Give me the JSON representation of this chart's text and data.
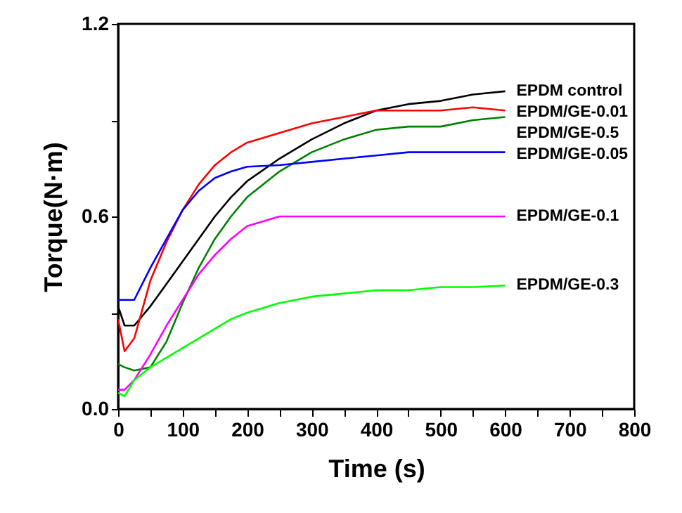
{
  "chart_data": {
    "type": "line",
    "xlabel": "Time (s)",
    "ylabel": "Torque(N·m)",
    "xlim": [
      0,
      800
    ],
    "ylim": [
      0,
      1.2
    ],
    "xticks": [
      0,
      {
        "value": 50,
        "label": null
      },
      100,
      {
        "value": 150,
        "label": null
      },
      200,
      {
        "value": 250,
        "label": null
      },
      300,
      {
        "value": 350,
        "label": null
      },
      400,
      {
        "value": 450,
        "label": null
      },
      500,
      {
        "value": 550,
        "label": null
      },
      600,
      {
        "value": 650,
        "label": null
      },
      700,
      {
        "value": 750,
        "label": null
      },
      800
    ],
    "yticks": [
      {
        "value": 0,
        "label": "0.0"
      },
      {
        "value": 0.3,
        "label": null
      },
      {
        "value": 0.6,
        "label": "0.6"
      },
      {
        "value": 0.9,
        "label": null
      },
      {
        "value": 1.2,
        "label": "1.2"
      }
    ],
    "x": [
      0,
      10,
      25,
      50,
      75,
      100,
      125,
      150,
      175,
      200,
      250,
      300,
      350,
      400,
      450,
      500,
      550,
      600
    ],
    "legend": false,
    "grid": false,
    "marker": "none",
    "line_style": "solid",
    "series": [
      {
        "name": "EPDM control",
        "color": "#000000",
        "values": [
          0.32,
          0.26,
          0.26,
          0.32,
          0.39,
          0.46,
          0.53,
          0.6,
          0.66,
          0.71,
          0.78,
          0.84,
          0.89,
          0.93,
          0.95,
          0.96,
          0.98,
          0.99
        ]
      },
      {
        "name": "EPDM/GE-0.01",
        "color": "#ff0000",
        "values": [
          0.28,
          0.18,
          0.22,
          0.4,
          0.52,
          0.62,
          0.7,
          0.76,
          0.8,
          0.83,
          0.86,
          0.89,
          0.91,
          0.93,
          0.93,
          0.93,
          0.94,
          0.93
        ]
      },
      {
        "name": "EPDM/GE-0.5",
        "color": "#008000",
        "values": [
          0.14,
          0.13,
          0.12,
          0.13,
          0.21,
          0.33,
          0.44,
          0.53,
          0.6,
          0.66,
          0.74,
          0.8,
          0.84,
          0.87,
          0.88,
          0.88,
          0.9,
          0.91
        ]
      },
      {
        "name": "EPDM/GE-0.05",
        "color": "#0000ff",
        "values": [
          0.34,
          0.34,
          0.34,
          0.44,
          0.53,
          0.62,
          0.68,
          0.72,
          0.74,
          0.755,
          0.76,
          0.77,
          0.78,
          0.79,
          0.8,
          0.8,
          0.8,
          0.8
        ]
      },
      {
        "name": "EPDM/GE-0.1",
        "color": "#ff00ff",
        "values": [
          0.06,
          0.06,
          0.09,
          0.17,
          0.26,
          0.34,
          0.42,
          0.48,
          0.53,
          0.57,
          0.6,
          0.6,
          0.6,
          0.6,
          0.6,
          0.6,
          0.6,
          0.6
        ]
      },
      {
        "name": "EPDM/GE-0.3",
        "color": "#00ff00",
        "values": [
          0.05,
          0.04,
          0.09,
          0.13,
          0.16,
          0.19,
          0.22,
          0.25,
          0.28,
          0.3,
          0.33,
          0.35,
          0.36,
          0.37,
          0.37,
          0.38,
          0.38,
          0.385
        ]
      }
    ]
  }
}
